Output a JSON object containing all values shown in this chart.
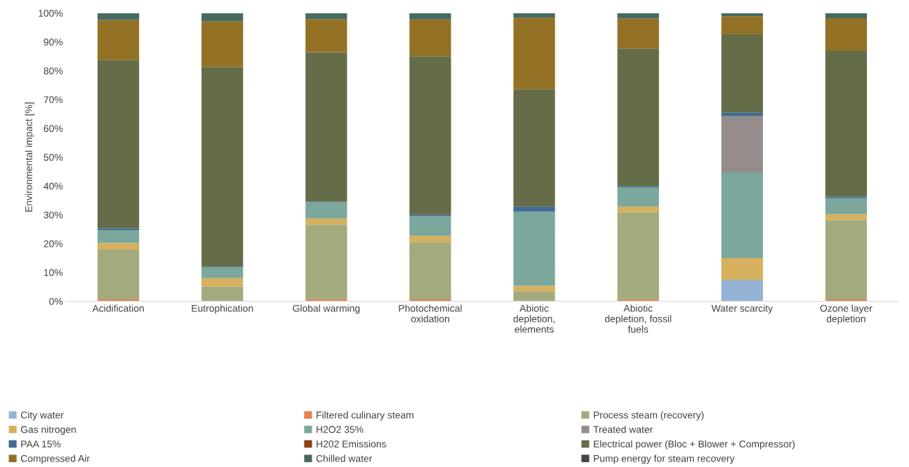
{
  "chart_data": {
    "type": "bar",
    "stacked": true,
    "ylabel": "Environmental impact [%]",
    "categories": [
      "Acidification",
      "Eutrophication",
      "Global warming",
      "Photochemical\noxidation",
      "Abiotic\ndepletion,\nelements",
      "Abiotic\ndepletion, fossil\nfuels",
      "Water scarcity",
      "Ozone layer\ndepletion"
    ],
    "series": [
      {
        "name": "City water",
        "color": "#95b3d7",
        "values": [
          0,
          0,
          0,
          0,
          0,
          0,
          7.2,
          0
        ]
      },
      {
        "name": "Filtered culinary steam",
        "color": "#e3834a",
        "values": [
          0.6,
          0,
          0.7,
          0.6,
          0,
          0.7,
          0,
          0.6
        ]
      },
      {
        "name": "Process steam (recovery)",
        "color": "#a3ab7e",
        "values": [
          17.3,
          5.1,
          25.9,
          19.9,
          3.5,
          30.2,
          0.4,
          27.6
        ]
      },
      {
        "name": "Gas nitrogen",
        "color": "#d6b05c",
        "values": [
          2.3,
          2.9,
          2.1,
          2.2,
          1.9,
          1.9,
          7.4,
          2.0
        ]
      },
      {
        "name": "H2O2 35%",
        "color": "#7ba79c",
        "values": [
          4.5,
          3.8,
          5.6,
          6.8,
          25.7,
          6.7,
          29.7,
          5.5
        ]
      },
      {
        "name": "Treated water",
        "color": "#968c8c",
        "values": [
          0,
          0,
          0,
          0,
          0,
          0,
          19.5,
          0
        ]
      },
      {
        "name": "PAA 15%",
        "color": "#3f6b96",
        "values": [
          0.6,
          0.2,
          0.2,
          0.5,
          1.7,
          0.5,
          1.2,
          0.6
        ]
      },
      {
        "name": "H202 Emissions",
        "color": "#8b3f14",
        "values": [
          0,
          0,
          0,
          0,
          0,
          0,
          0,
          0
        ]
      },
      {
        "name": "Electrical power (Bloc + Blower + Compressor)",
        "color": "#656c48",
        "values": [
          58.5,
          69.3,
          51.9,
          55.0,
          40.8,
          47.7,
          27.2,
          50.7
        ]
      },
      {
        "name": "Compressed Air",
        "color": "#937124",
        "values": [
          13.8,
          15.9,
          11.5,
          12.8,
          24.8,
          10.4,
          6.3,
          11.2
        ]
      },
      {
        "name": "Chilled water",
        "color": "#466a62",
        "values": [
          2.4,
          2.8,
          2.1,
          2.2,
          1.6,
          1.9,
          1.1,
          1.8
        ]
      },
      {
        "name": "Pump energy for steam recovery",
        "color": "#4a4446",
        "values": [
          0,
          0,
          0,
          0,
          0,
          0,
          0,
          0
        ]
      }
    ],
    "ylim": [
      0,
      100
    ],
    "yticks": [
      {
        "value": 0,
        "label": "0%"
      },
      {
        "value": 10,
        "label": "10%"
      },
      {
        "value": 20,
        "label": "20%"
      },
      {
        "value": 30,
        "label": "30%"
      },
      {
        "value": 40,
        "label": "40%"
      },
      {
        "value": 50,
        "label": "50%"
      },
      {
        "value": 60,
        "label": "60%"
      },
      {
        "value": 70,
        "label": "70%"
      },
      {
        "value": 80,
        "label": "80%"
      },
      {
        "value": 90,
        "label": "90%"
      },
      {
        "value": 100,
        "label": "100%"
      }
    ],
    "grid": false,
    "legend": "bottom"
  }
}
